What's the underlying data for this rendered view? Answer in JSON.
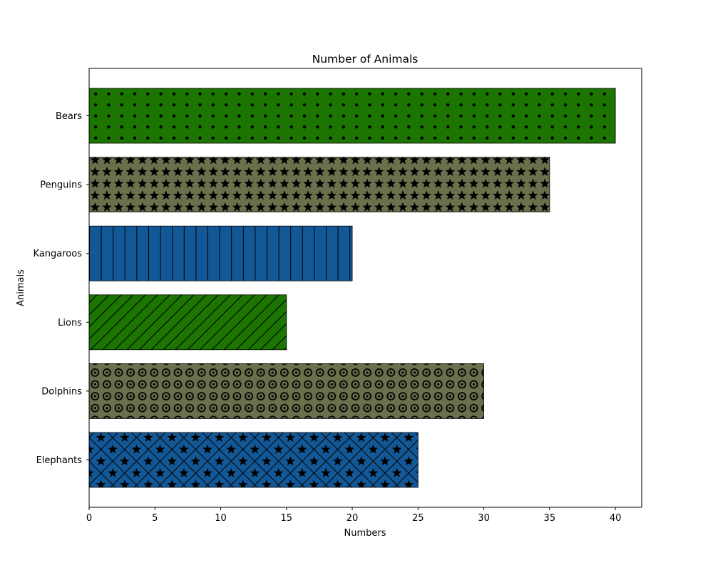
{
  "chart_data": {
    "type": "bar",
    "orientation": "horizontal",
    "title": "Number of Animals",
    "xlabel": "Numbers",
    "ylabel": "Animals",
    "xlim": [
      0,
      42
    ],
    "x_ticks": [
      0,
      5,
      10,
      15,
      20,
      25,
      30,
      35,
      40
    ],
    "grid": false,
    "categories": [
      "Elephants",
      "Dolphins",
      "Lions",
      "Kangaroos",
      "Penguins",
      "Bears"
    ],
    "values": [
      25,
      30,
      15,
      20,
      35,
      40
    ],
    "bar_colors": [
      "#135896",
      "#6b6f4b",
      "#1b7500",
      "#135896",
      "#6b6f4b",
      "#1b7500"
    ],
    "bar_hatches": [
      "star-and-diamond",
      "circles",
      "diagonal-lines",
      "vertical-lines",
      "stars",
      "dots"
    ]
  }
}
